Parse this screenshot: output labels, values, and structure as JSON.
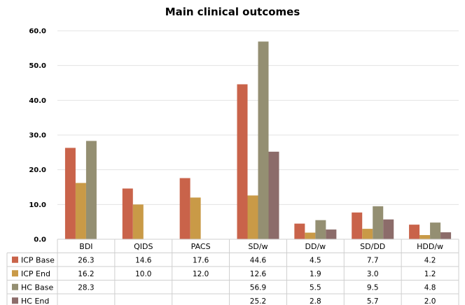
{
  "chart_data": {
    "type": "bar",
    "title": "Main clinical outcomes",
    "xlabel": "",
    "ylabel": "",
    "ylim": [
      0,
      60
    ],
    "yticks": [
      "0.0",
      "10.0",
      "20.0",
      "30.0",
      "40.0",
      "50.0",
      "60.0"
    ],
    "grid": true,
    "legend": "data-table",
    "categories": [
      "BDI",
      "QIDS",
      "PACS",
      "SD/w",
      "DD/w",
      "SD/DD",
      "HDD/w"
    ],
    "series": [
      {
        "name": "ICP Base",
        "color": "#c9634a",
        "values": [
          26.3,
          14.6,
          17.6,
          44.6,
          4.5,
          7.7,
          4.2
        ],
        "labels": [
          "26.3",
          "14.6",
          "17.6",
          "44.6",
          "4.5",
          "7.7",
          "4.2"
        ]
      },
      {
        "name": "ICP End",
        "color": "#c99a47",
        "values": [
          16.2,
          10.0,
          12.0,
          12.6,
          1.9,
          3.0,
          1.2
        ],
        "labels": [
          "16.2",
          "10.0",
          "12.0",
          "12.6",
          "1.9",
          "3.0",
          "1.2"
        ]
      },
      {
        "name": "HC Base",
        "color": "#948f72",
        "values": [
          28.3,
          null,
          null,
          56.9,
          5.5,
          9.5,
          4.8
        ],
        "labels": [
          "28.3",
          "",
          "",
          "56.9",
          "5.5",
          "9.5",
          "4.8"
        ]
      },
      {
        "name": "HC End",
        "color": "#8c6c6a",
        "values": [
          null,
          null,
          null,
          25.2,
          2.8,
          5.7,
          2.0
        ],
        "labels": [
          "",
          "",
          "",
          "25.2",
          "2.8",
          "5.7",
          "2.0"
        ]
      }
    ]
  }
}
